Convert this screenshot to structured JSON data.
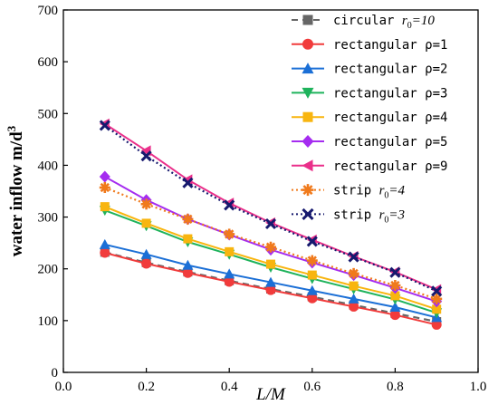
{
  "chart_data": {
    "type": "line",
    "xlabel": "L/M",
    "ylabel": "water inflow m/d",
    "ylabel_sup": "3",
    "xlim": [
      0.0,
      1.0
    ],
    "ylim": [
      0,
      700
    ],
    "x_ticks": [
      "0.0",
      "0.2",
      "0.4",
      "0.6",
      "0.8",
      "1.0"
    ],
    "y_ticks": [
      "0",
      "100",
      "200",
      "300",
      "400",
      "500",
      "600",
      "700"
    ],
    "legend_position": "top-right",
    "x": [
      0.1,
      0.2,
      0.3,
      0.4,
      0.5,
      0.6,
      0.7,
      0.8,
      0.9
    ],
    "series": [
      {
        "name": "circular r0=10",
        "label_text": "circular ",
        "label_var": "r",
        "label_sub": "0",
        "label_tail": "=10",
        "color": "#666666",
        "marker": "square",
        "dash": "dash",
        "values": [
          232,
          212,
          194,
          177,
          161,
          146,
          130,
          114,
          98
        ]
      },
      {
        "name": "rectangular ρ=1",
        "label_text": "rectangular ρ=1",
        "color": "#f13b3b",
        "marker": "circle",
        "dash": "solid",
        "values": [
          231,
          210,
          192,
          175,
          159,
          143,
          127,
          111,
          92
        ]
      },
      {
        "name": "rectangular ρ=2",
        "label_text": "rectangular ρ=2",
        "color": "#1b6fd6",
        "marker": "triangle-up",
        "dash": "solid",
        "values": [
          247,
          228,
          207,
          190,
          174,
          158,
          142,
          126,
          106
        ]
      },
      {
        "name": "rectangular ρ=3",
        "label_text": "rectangular ρ=3",
        "color": "#1fb35c",
        "marker": "triangle-down",
        "dash": "solid",
        "values": [
          313,
          283,
          252,
          228,
          203,
          181,
          161,
          141,
          115
        ]
      },
      {
        "name": "rectangular ρ=4",
        "label_text": "rectangular ρ=4",
        "color": "#f8b50f",
        "marker": "square",
        "dash": "solid",
        "values": [
          320,
          288,
          258,
          233,
          209,
          188,
          167,
          148,
          122
        ]
      },
      {
        "name": "rectangular ρ=5",
        "label_text": "rectangular ρ=5",
        "color": "#a52cf0",
        "marker": "diamond",
        "dash": "solid",
        "values": [
          378,
          333,
          296,
          266,
          237,
          212,
          188,
          163,
          137
        ]
      },
      {
        "name": "rectangular ρ=9",
        "label_text": "rectangular ρ=9",
        "color": "#ea2f8a",
        "marker": "triangle-left",
        "dash": "solid",
        "values": [
          480,
          428,
          372,
          327,
          289,
          256,
          224,
          194,
          160
        ]
      },
      {
        "name": "strip r0=4",
        "label_text": "strip ",
        "label_var": "r",
        "label_sub": "0",
        "label_tail": "=4",
        "color": "#f07a1c",
        "marker": "asterisk",
        "dash": "dot",
        "values": [
          357,
          325,
          296,
          267,
          242,
          216,
          191,
          168,
          142
        ]
      },
      {
        "name": "strip r0=3",
        "label_text": "strip ",
        "label_var": "r",
        "label_sub": "0",
        "label_tail": "=3",
        "color": "#16196e",
        "marker": "x",
        "dash": "dot",
        "values": [
          477,
          418,
          366,
          323,
          287,
          253,
          223,
          193,
          157
        ]
      }
    ]
  }
}
